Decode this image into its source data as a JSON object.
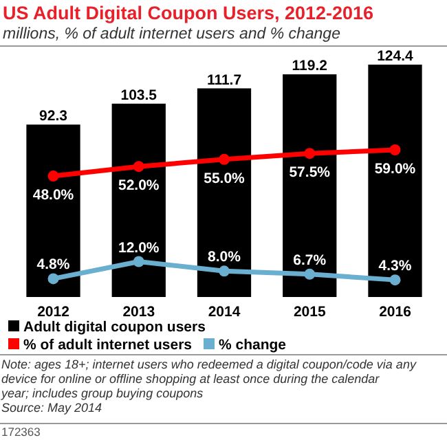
{
  "chart_data": {
    "type": "bar",
    "title": "US Adult Digital Coupon Users, 2012-2016",
    "subtitle": "millions, % of adult internet users and % change",
    "categories": [
      "2012",
      "2013",
      "2014",
      "2015",
      "2016"
    ],
    "series": [
      {
        "name": "Adult digital coupon users",
        "color": "#000000",
        "values": [
          92.3,
          103.5,
          111.7,
          119.2,
          124.4
        ]
      },
      {
        "name": "% of adult internet users",
        "type": "line",
        "axis": "y2",
        "color": "#ff0000",
        "values": [
          48.0,
          52.0,
          55.0,
          57.5,
          59.0
        ],
        "value_labels": [
          "48.0%",
          "52.0%",
          "55.0%",
          "57.5%",
          "59.0%"
        ]
      },
      {
        "name": "% change",
        "type": "line",
        "axis": "y2",
        "color": "#6aaed0",
        "values": [
          4.8,
          12.0,
          8.0,
          6.7,
          4.3
        ],
        "value_labels": [
          "4.8%",
          "12.0%",
          "8.0%",
          "6.7%",
          "4.3%"
        ]
      }
    ],
    "tick_labels": "x",
    "data_labels": true,
    "marker": "circle",
    "legend": "bottom",
    "annotations": [
      "Note: ages 18+; internet users who redeemed a digital coupon/code via any device for online or offline shopping at least once during the calendar year; includes group buying coupons",
      "Source: May 2014",
      "172363"
    ]
  }
}
